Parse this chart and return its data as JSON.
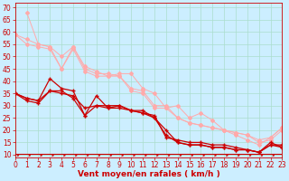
{
  "xlabel": "Vent moyen/en rafales ( km/h )",
  "background_color": "#cceeff",
  "grid_color": "#aaddcc",
  "x_ticks": [
    0,
    1,
    2,
    3,
    4,
    5,
    6,
    7,
    8,
    9,
    10,
    11,
    12,
    13,
    14,
    15,
    16,
    17,
    18,
    19,
    20,
    21,
    22,
    23
  ],
  "y_ticks": [
    10,
    15,
    20,
    25,
    30,
    35,
    40,
    45,
    50,
    55,
    60,
    65,
    70
  ],
  "ylim": [
    9,
    72
  ],
  "xlim": [
    0,
    23
  ],
  "line_pink1_x": [
    0,
    1,
    2,
    3,
    4,
    5,
    6,
    7,
    8,
    9,
    10,
    11,
    12,
    13,
    14,
    15,
    16,
    17,
    18,
    19,
    20,
    21,
    22,
    23
  ],
  "line_pink1_y": [
    59,
    57,
    55,
    54,
    45,
    54,
    45,
    43,
    43,
    42,
    37,
    36,
    30,
    30,
    25,
    23,
    22,
    21,
    20,
    19,
    18,
    16,
    17,
    21
  ],
  "line_pink2_x": [
    0,
    1,
    2,
    3,
    4,
    5,
    6,
    7,
    8,
    9,
    10,
    11,
    12,
    13,
    14,
    15,
    16,
    17,
    18,
    19,
    20,
    21,
    22,
    23
  ],
  "line_pink2_y": [
    59,
    55,
    54,
    53,
    45,
    53,
    44,
    42,
    42,
    42,
    36,
    35,
    29,
    29,
    25,
    23,
    22,
    21,
    20,
    19,
    18,
    15,
    16,
    20
  ],
  "line_pink3_x": [
    1,
    2,
    3,
    4,
    5,
    6,
    7,
    8,
    9,
    10,
    11,
    12,
    13,
    14,
    15,
    16,
    17,
    18,
    19,
    20,
    21,
    22,
    23
  ],
  "line_pink3_y": [
    68,
    55,
    54,
    50,
    54,
    46,
    44,
    42,
    43,
    43,
    37,
    35,
    29,
    30,
    25,
    27,
    24,
    20,
    18,
    16,
    14,
    17,
    21
  ],
  "line_dark1_x": [
    0,
    1,
    2,
    3,
    4,
    5,
    6,
    7,
    8,
    9,
    10,
    11,
    12,
    13,
    14,
    15,
    16,
    17,
    18,
    19,
    20,
    21,
    22,
    23
  ],
  "line_dark1_y": [
    35,
    33,
    32,
    36,
    36,
    33,
    26,
    30,
    30,
    30,
    28,
    27,
    25,
    20,
    15,
    14,
    14,
    13,
    13,
    12,
    12,
    11,
    14,
    13
  ],
  "line_dark2_x": [
    0,
    1,
    2,
    3,
    4,
    5,
    6,
    7,
    8,
    9,
    10,
    11,
    12,
    13,
    14,
    15,
    16,
    17,
    18,
    19,
    20,
    21,
    22,
    23
  ],
  "line_dark2_y": [
    35,
    33,
    32,
    41,
    37,
    36,
    26,
    34,
    29,
    29,
    28,
    27,
    26,
    17,
    16,
    15,
    15,
    14,
    14,
    13,
    12,
    11,
    14,
    14
  ],
  "line_dark3_x": [
    0,
    1,
    2,
    3,
    4,
    5,
    6,
    7,
    8,
    9,
    10,
    11,
    12,
    13,
    14,
    15,
    16,
    17,
    18,
    19,
    20,
    21,
    22,
    23
  ],
  "line_dark3_y": [
    35,
    32,
    31,
    36,
    35,
    34,
    29,
    30,
    29,
    30,
    28,
    28,
    25,
    18,
    15,
    14,
    14,
    13,
    13,
    12,
    12,
    11,
    15,
    13
  ],
  "pink_color": "#ffaaaa",
  "dark_color": "#cc0000",
  "tick_color": "#cc0000",
  "xlabel_color": "#cc0000",
  "tick_fontsize": 5.5,
  "xlabel_fontsize": 6.5
}
